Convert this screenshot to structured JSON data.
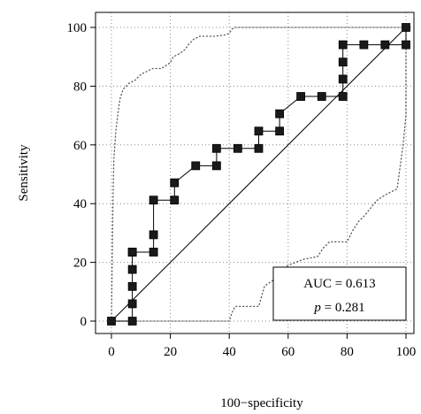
{
  "chart_data": {
    "type": "line",
    "xlabel": "100−specificity",
    "ylabel": "Sensitivity",
    "xlim": [
      0,
      100
    ],
    "ylim": [
      0,
      100
    ],
    "x_ticks": [
      "0",
      "20",
      "40",
      "60",
      "80",
      "100"
    ],
    "y_ticks": [
      "0",
      "20",
      "40",
      "60",
      "80",
      "100"
    ],
    "grid": "dotted",
    "legend_position": "bottom-right",
    "annotation": {
      "auc_text": "AUC = 0.613",
      "p_symbol": "p",
      "p_rest": " = 0.281"
    },
    "series": [
      {
        "role": "roc",
        "marker": "square",
        "x": [
          0,
          7.1,
          7.1,
          7.1,
          7.1,
          7.1,
          7.1,
          14.3,
          14.3,
          14.3,
          21.4,
          21.4,
          28.6,
          35.7,
          35.7,
          42.9,
          50,
          50,
          57.1,
          57.1,
          64.3,
          71.4,
          78.6,
          78.6,
          78.6,
          78.6,
          85.7,
          92.9,
          100,
          100
        ],
        "y": [
          0,
          0,
          5.9,
          11.8,
          17.6,
          23.5,
          23.5,
          23.5,
          29.4,
          41.2,
          41.2,
          47.1,
          52.9,
          52.9,
          58.8,
          58.8,
          58.8,
          64.7,
          64.7,
          70.6,
          76.5,
          76.5,
          76.5,
          82.4,
          88.2,
          94.1,
          94.1,
          94.1,
          94.1,
          100
        ]
      },
      {
        "role": "reference",
        "x": [
          0,
          100
        ],
        "y": [
          0,
          100
        ]
      },
      {
        "role": "upper-confidence",
        "x": [
          0,
          0.5,
          0.8,
          1.5,
          2.5,
          3,
          4,
          6,
          8,
          10,
          14,
          17,
          20,
          21,
          23,
          25,
          26,
          28,
          30,
          35,
          39,
          40,
          41,
          42,
          50,
          60,
          70,
          80,
          90,
          100
        ],
        "y": [
          0,
          40,
          55,
          65,
          73,
          76,
          79,
          81,
          82,
          84,
          86,
          86,
          88,
          90,
          91,
          92.5,
          94,
          96,
          97,
          97,
          97.5,
          98,
          99.5,
          100,
          100,
          100,
          100,
          100,
          100,
          100
        ]
      },
      {
        "role": "lower-confidence",
        "x": [
          0,
          10,
          20,
          30,
          40,
          41,
          42,
          50,
          52,
          55,
          58,
          60,
          65,
          70,
          72,
          74,
          80,
          82,
          84,
          86,
          90,
          93,
          95,
          97,
          99,
          100,
          100
        ],
        "y": [
          0,
          0,
          0,
          0,
          0,
          3,
          5,
          5,
          12,
          14,
          17,
          19,
          21,
          22,
          25,
          27,
          27,
          31,
          34,
          36,
          41,
          43,
          44,
          45,
          60,
          70,
          100
        ]
      }
    ]
  }
}
